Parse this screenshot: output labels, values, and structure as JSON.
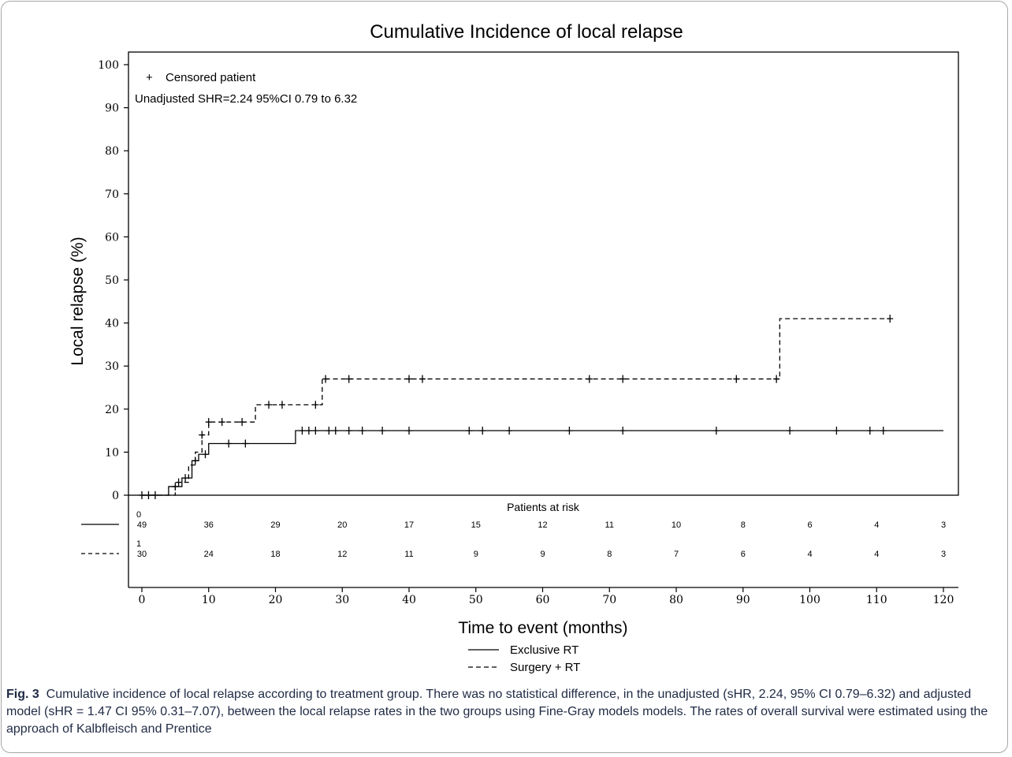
{
  "chart_data": {
    "type": "line",
    "title": "Cumulative Incidence of local relapse",
    "xlabel": "Time to event (months)",
    "ylabel": "Local relapse (%)",
    "xlim": [
      0,
      120
    ],
    "ylim": [
      0,
      100
    ],
    "xticks": [
      0,
      10,
      20,
      30,
      40,
      50,
      60,
      70,
      80,
      90,
      100,
      110,
      120
    ],
    "yticks": [
      0,
      10,
      20,
      30,
      40,
      50,
      60,
      70,
      80,
      90,
      100
    ],
    "grid": false,
    "censor_legend": "Censored patient",
    "annotation": "Unadjusted SHR=2.24 95%CI 0.79 to 6.32",
    "series": [
      {
        "name": "Exclusive RT",
        "dash": "solid",
        "steps": [
          [
            0,
            0
          ],
          [
            4,
            2
          ],
          [
            6,
            4
          ],
          [
            7.5,
            8
          ],
          [
            8.5,
            9.5
          ],
          [
            10,
            12
          ],
          [
            23,
            15
          ],
          [
            120,
            15
          ]
        ],
        "end": 111,
        "censored": [
          [
            0,
            0
          ],
          [
            1,
            0
          ],
          [
            2,
            0
          ],
          [
            5,
            2
          ],
          [
            6.5,
            4
          ],
          [
            8,
            8
          ],
          [
            9.5,
            9.5
          ],
          [
            13,
            12
          ],
          [
            15.5,
            12
          ],
          [
            24,
            15
          ],
          [
            25,
            15
          ],
          [
            26,
            15
          ],
          [
            28,
            15
          ],
          [
            29,
            15
          ],
          [
            31,
            15
          ],
          [
            33,
            15
          ],
          [
            36,
            15
          ],
          [
            40,
            15
          ],
          [
            49,
            15
          ],
          [
            51,
            15
          ],
          [
            55,
            15
          ],
          [
            64,
            15
          ],
          [
            72,
            15
          ],
          [
            86,
            15
          ],
          [
            97,
            15
          ],
          [
            104,
            15
          ],
          [
            109,
            15
          ],
          [
            111,
            15
          ]
        ]
      },
      {
        "name": "Surgery + RT",
        "dash": "dashed",
        "steps": [
          [
            0,
            0
          ],
          [
            5,
            3
          ],
          [
            7,
            7
          ],
          [
            8,
            10
          ],
          [
            9,
            14
          ],
          [
            10,
            17
          ],
          [
            17,
            21
          ],
          [
            27,
            27
          ],
          [
            95.5,
            41
          ]
        ],
        "end": 112,
        "censored": [
          [
            5.5,
            3
          ],
          [
            9,
            14
          ],
          [
            10,
            17
          ],
          [
            12,
            17
          ],
          [
            15,
            17
          ],
          [
            19,
            21
          ],
          [
            21,
            21
          ],
          [
            26,
            21
          ],
          [
            27.5,
            27
          ],
          [
            31,
            27
          ],
          [
            40,
            27
          ],
          [
            42,
            27
          ],
          [
            67,
            27
          ],
          [
            72,
            27
          ],
          [
            89,
            27
          ],
          [
            95,
            27
          ],
          [
            112,
            41
          ]
        ]
      }
    ],
    "risk_table": {
      "header": "Patients at risk",
      "times": [
        0,
        10,
        20,
        30,
        40,
        50,
        60,
        70,
        80,
        90,
        100,
        110,
        120
      ],
      "rows": [
        {
          "group_code": "0",
          "dash": "solid",
          "counts": [
            "49",
            "36",
            "29",
            "20",
            "17",
            "15",
            "12",
            "11",
            "10",
            "8",
            "6",
            "4",
            "3"
          ]
        },
        {
          "group_code": "1",
          "dash": "dashed",
          "counts": [
            "30",
            "24",
            "18",
            "12",
            "11",
            "9",
            "9",
            "8",
            "7",
            "6",
            "4",
            "4",
            "3"
          ]
        }
      ]
    }
  },
  "caption": {
    "label": "Fig. 3",
    "text": "Cumulative incidence of local relapse according to treatment group. There was no statistical difference, in the unadjusted (sHR, 2.24, 95% CI 0.79–6.32) and adjusted model (sHR = 1.47 CI 95% 0.31–7.07), between the local relapse rates in the two groups using Fine-Gray models models. The rates of overall survival were estimated using the approach of Kalbfleisch and Prentice"
  }
}
